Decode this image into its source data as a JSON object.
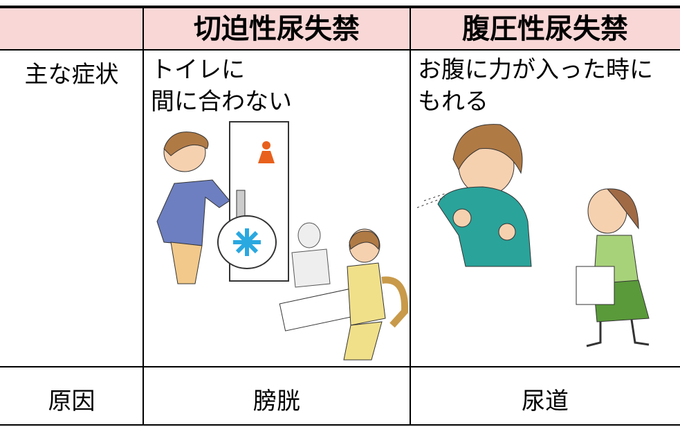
{
  "table": {
    "columns": [
      "切迫性尿失禁",
      "腹圧性尿失禁"
    ],
    "rows": [
      {
        "label": "主な症状",
        "cells": [
          [
            "トイレに",
            "間に合わない"
          ],
          [
            "お腹に力が入った時に",
            "もれる"
          ]
        ]
      },
      {
        "label": "原因",
        "cells": [
          "膀胱",
          "尿道"
        ]
      }
    ]
  }
}
